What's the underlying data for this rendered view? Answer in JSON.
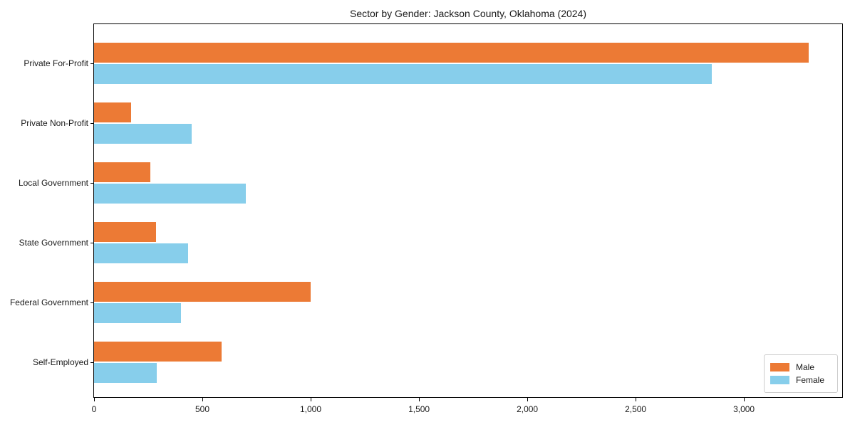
{
  "title": "Sector by Gender: Jackson County, Oklahoma (2024)",
  "colors": {
    "male": "#EC7A35",
    "female": "#87CEEB",
    "axis": "#000000",
    "legend_border": "#CCCCCC",
    "background": "#FFFFFF",
    "text": "#1A1A1A"
  },
  "chart_data": {
    "type": "bar",
    "orientation": "horizontal",
    "title": "Sector by Gender: Jackson County, Oklahoma (2024)",
    "categories": [
      "Private For-Profit",
      "Private Non-Profit",
      "Local Government",
      "State Government",
      "Federal Government",
      "Self-Employed"
    ],
    "series": [
      {
        "name": "Male",
        "color": "#EC7A35",
        "values": [
          3300,
          170,
          260,
          285,
          1000,
          590
        ]
      },
      {
        "name": "Female",
        "color": "#87CEEB",
        "values": [
          2850,
          450,
          700,
          435,
          400,
          290
        ]
      }
    ],
    "xlabel": "",
    "ylabel": "",
    "xlim": [
      0,
      3460
    ],
    "x_ticks": [
      0,
      500,
      1000,
      1500,
      2000,
      2500,
      3000
    ],
    "x_tick_labels": [
      "0",
      "500",
      "1,000",
      "1,500",
      "2,000",
      "2,500",
      "3,000"
    ],
    "grid": false,
    "legend": {
      "position": "lower right",
      "entries": [
        "Male",
        "Female"
      ]
    }
  }
}
